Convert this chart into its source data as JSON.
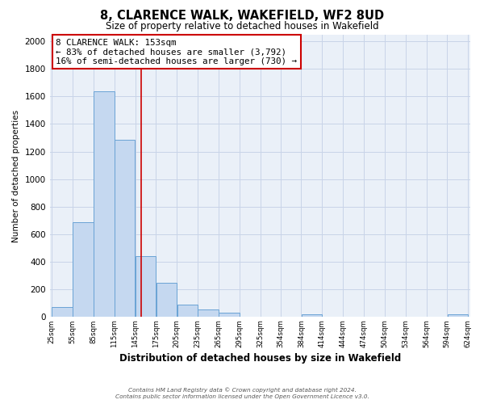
{
  "title": "8, CLARENCE WALK, WAKEFIELD, WF2 8UD",
  "subtitle": "Size of property relative to detached houses in Wakefield",
  "xlabel": "Distribution of detached houses by size in Wakefield",
  "ylabel": "Number of detached properties",
  "bar_left_edges": [
    25,
    55,
    85,
    115,
    145,
    175,
    205,
    235,
    265,
    295,
    325,
    354,
    384,
    414,
    444,
    474,
    504,
    534,
    564,
    594
  ],
  "bar_widths": [
    30,
    30,
    30,
    30,
    30,
    30,
    30,
    30,
    30,
    30,
    29,
    30,
    30,
    30,
    30,
    30,
    30,
    30,
    30,
    30
  ],
  "bar_heights": [
    70,
    690,
    1635,
    1285,
    440,
    250,
    90,
    55,
    30,
    0,
    0,
    0,
    20,
    0,
    0,
    0,
    0,
    0,
    0,
    20
  ],
  "bar_color": "#c5d8f0",
  "bar_edge_color": "#6aa3d5",
  "x_tick_labels": [
    "25sqm",
    "55sqm",
    "85sqm",
    "115sqm",
    "145sqm",
    "175sqm",
    "205sqm",
    "235sqm",
    "265sqm",
    "295sqm",
    "325sqm",
    "354sqm",
    "384sqm",
    "414sqm",
    "444sqm",
    "474sqm",
    "504sqm",
    "534sqm",
    "564sqm",
    "594sqm",
    "624sqm"
  ],
  "ylim": [
    0,
    2050
  ],
  "yticks": [
    0,
    200,
    400,
    600,
    800,
    1000,
    1200,
    1400,
    1600,
    1800,
    2000
  ],
  "red_line_x": 153,
  "annotation_title": "8 CLARENCE WALK: 153sqm",
  "annotation_line1": "← 83% of detached houses are smaller (3,792)",
  "annotation_line2": "16% of semi-detached houses are larger (730) →",
  "annotation_box_facecolor": "#ffffff",
  "annotation_box_edgecolor": "#cc0000",
  "red_line_color": "#cc0000",
  "grid_color": "#c8d4e8",
  "background_color": "#eaf0f8",
  "footer_line1": "Contains HM Land Registry data © Crown copyright and database right 2024.",
  "footer_line2": "Contains public sector information licensed under the Open Government Licence v3.0."
}
